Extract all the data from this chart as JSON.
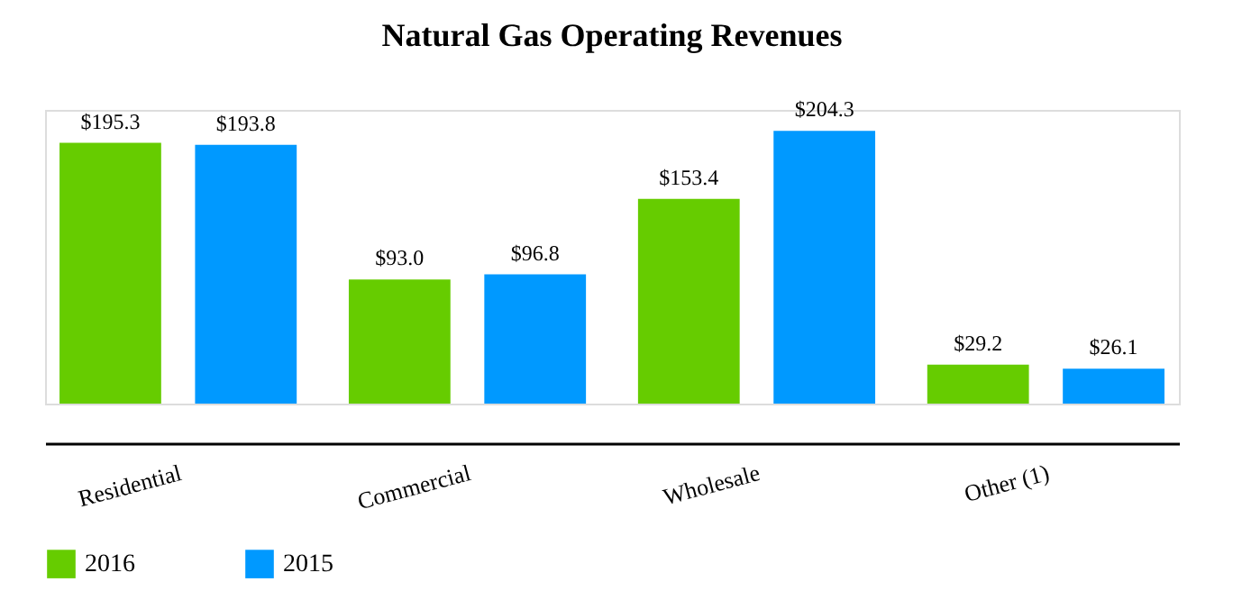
{
  "chart_data": {
    "type": "bar",
    "title": "Natural Gas Operating Revenues",
    "categories": [
      "Residential",
      "Commercial",
      "Wholesale",
      "Other (1)"
    ],
    "legend": "bottom",
    "series": [
      {
        "name": "2016",
        "color": "#66cc00",
        "values": [
          195.3,
          93.0,
          153.4,
          29.2
        ],
        "value_labels": [
          "$195.3",
          "$93.0",
          "$153.4",
          "$29.2"
        ]
      },
      {
        "name": "2015",
        "color": "#0099ff",
        "values": [
          193.8,
          96.8,
          204.3,
          26.1
        ],
        "value_labels": [
          "$193.8",
          "$96.8",
          "$204.3",
          "$26.1"
        ]
      }
    ]
  }
}
